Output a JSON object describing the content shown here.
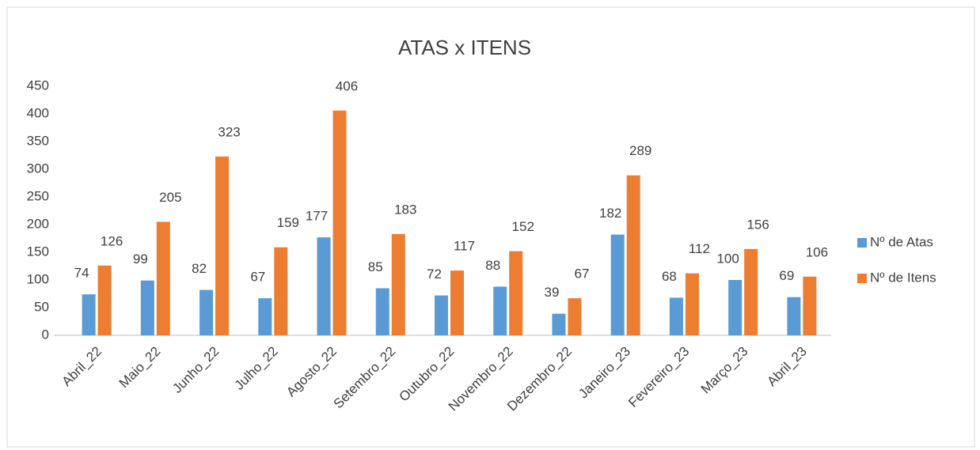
{
  "chart_data": {
    "type": "bar",
    "title": "ATAS x ITENS",
    "categories": [
      "Abril_22",
      "Maio_22",
      "Junho_22",
      "Julho_22",
      "Agosto_22",
      "Setembro_22",
      "Outubro_22",
      "Novembro_22",
      "Dezembro_22",
      "Janeiro_23",
      "Fevereiro_23",
      "Março_23",
      "Abril_23"
    ],
    "series": [
      {
        "name": "Nº de Atas",
        "color": "#5b9bd5",
        "values": [
          74,
          99,
          82,
          67,
          177,
          85,
          72,
          88,
          39,
          182,
          68,
          100,
          69
        ]
      },
      {
        "name": "Nº de Itens",
        "color": "#ed7d31",
        "values": [
          126,
          205,
          323,
          159,
          406,
          183,
          117,
          152,
          67,
          289,
          112,
          156,
          106
        ]
      }
    ],
    "ylim": [
      0,
      450
    ],
    "yticks": [
      0,
      50,
      100,
      150,
      200,
      250,
      300,
      350,
      400,
      450
    ],
    "grid": false,
    "legend": "right"
  }
}
